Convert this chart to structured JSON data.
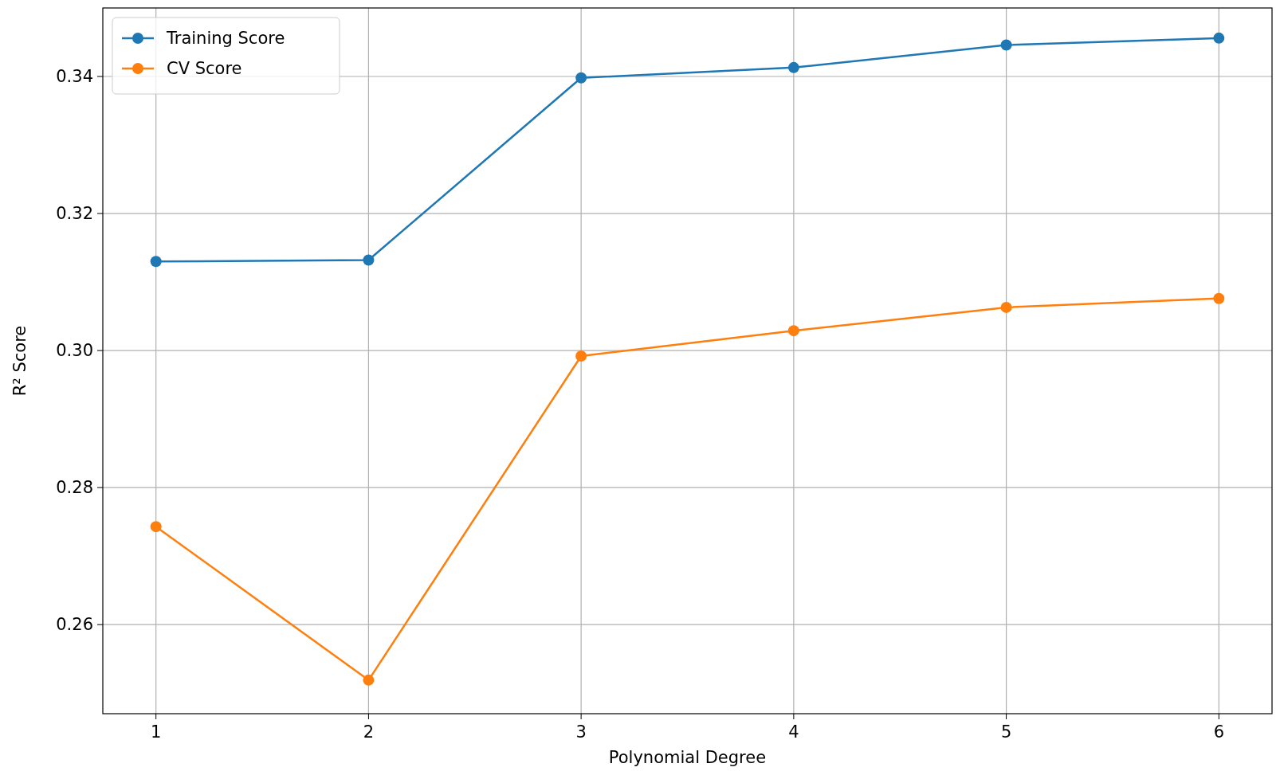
{
  "chart_data": {
    "type": "line",
    "xlabel": "Polynomial Degree",
    "ylabel": "R² Score",
    "x": [
      1,
      2,
      3,
      4,
      5,
      6
    ],
    "series": [
      {
        "name": "Training Score",
        "color": "#1f77b4",
        "values": [
          0.313,
          0.3132,
          0.3398,
          0.3413,
          0.3446,
          0.3456
        ]
      },
      {
        "name": "CV Score",
        "color": "#ff7f0e",
        "values": [
          0.2743,
          0.2519,
          0.2992,
          0.3029,
          0.3063,
          0.3076
        ]
      }
    ],
    "xlim": [
      0.75,
      6.25
    ],
    "xticks": [
      1,
      2,
      3,
      4,
      5,
      6
    ],
    "ylim": [
      0.247,
      0.35
    ],
    "yticks": [
      {
        "value": 0.26,
        "label": "0.26"
      },
      {
        "value": 0.28,
        "label": "0.28"
      },
      {
        "value": 0.3,
        "label": "0.30"
      },
      {
        "value": 0.32,
        "label": "0.32"
      },
      {
        "value": 0.34,
        "label": "0.34"
      }
    ],
    "grid": true,
    "legend": "top left",
    "marker": "circle",
    "line_style": "solid"
  }
}
